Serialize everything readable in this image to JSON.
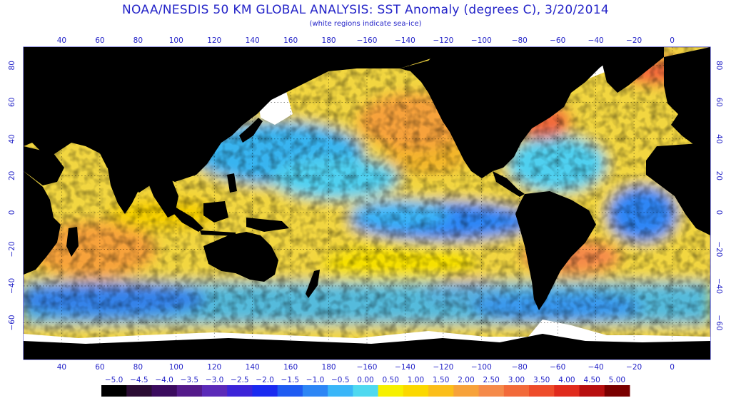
{
  "title": "NOAA/NESDIS 50 KM GLOBAL ANALYSIS: SST Anomaly (degrees C), 3/20/2014",
  "subtitle": "(white regions indicate sea-ice)",
  "map": {
    "lon_labels_top": [
      "40",
      "60",
      "80",
      "100",
      "120",
      "140",
      "160",
      "180",
      "−160",
      "−140",
      "−120",
      "−100",
      "−80",
      "−60",
      "−40",
      "−20",
      "0"
    ],
    "lon_labels_bottom": [
      "40",
      "60",
      "80",
      "100",
      "120",
      "140",
      "160",
      "180",
      "−160",
      "−140",
      "−120",
      "−100",
      "−80",
      "−60",
      "−40",
      "−20",
      "0"
    ],
    "lat_labels": [
      "80",
      "60",
      "40",
      "20",
      "0",
      "−20",
      "−40",
      "−60"
    ],
    "lat_values": [
      80,
      60,
      40,
      20,
      0,
      -20,
      -40,
      -60
    ],
    "lon_start": 40,
    "lon_step": 20,
    "lat_range": [
      -80,
      90
    ],
    "land_color": "#000000",
    "ice_color": "#ffffff",
    "grid": "dotted"
  },
  "colorbar": {
    "labels": [
      "−5.0",
      "−4.5",
      "−4.0",
      "−3.5",
      "−3.0",
      "−2.5",
      "−2.0",
      "−1.5",
      "−1.0",
      "−0.5",
      "0.00",
      "0.50",
      "1.00",
      "1.50",
      "2.00",
      "2.50",
      "3.00",
      "3.50",
      "4.00",
      "4.50",
      "5.00"
    ],
    "colors": [
      "#000000",
      "#2a0c33",
      "#3b0b5e",
      "#541a8a",
      "#5b2ab8",
      "#3c24d8",
      "#1a2af0",
      "#1f5bf2",
      "#2d86f5",
      "#3ab6f8",
      "#4fd9f0",
      "#f6f000",
      "#fbd800",
      "#fbbe1a",
      "#f7a23a",
      "#f58a4a",
      "#f26a3a",
      "#ee4c2a",
      "#e02a1c",
      "#b80f0f",
      "#7a0000"
    ]
  }
}
